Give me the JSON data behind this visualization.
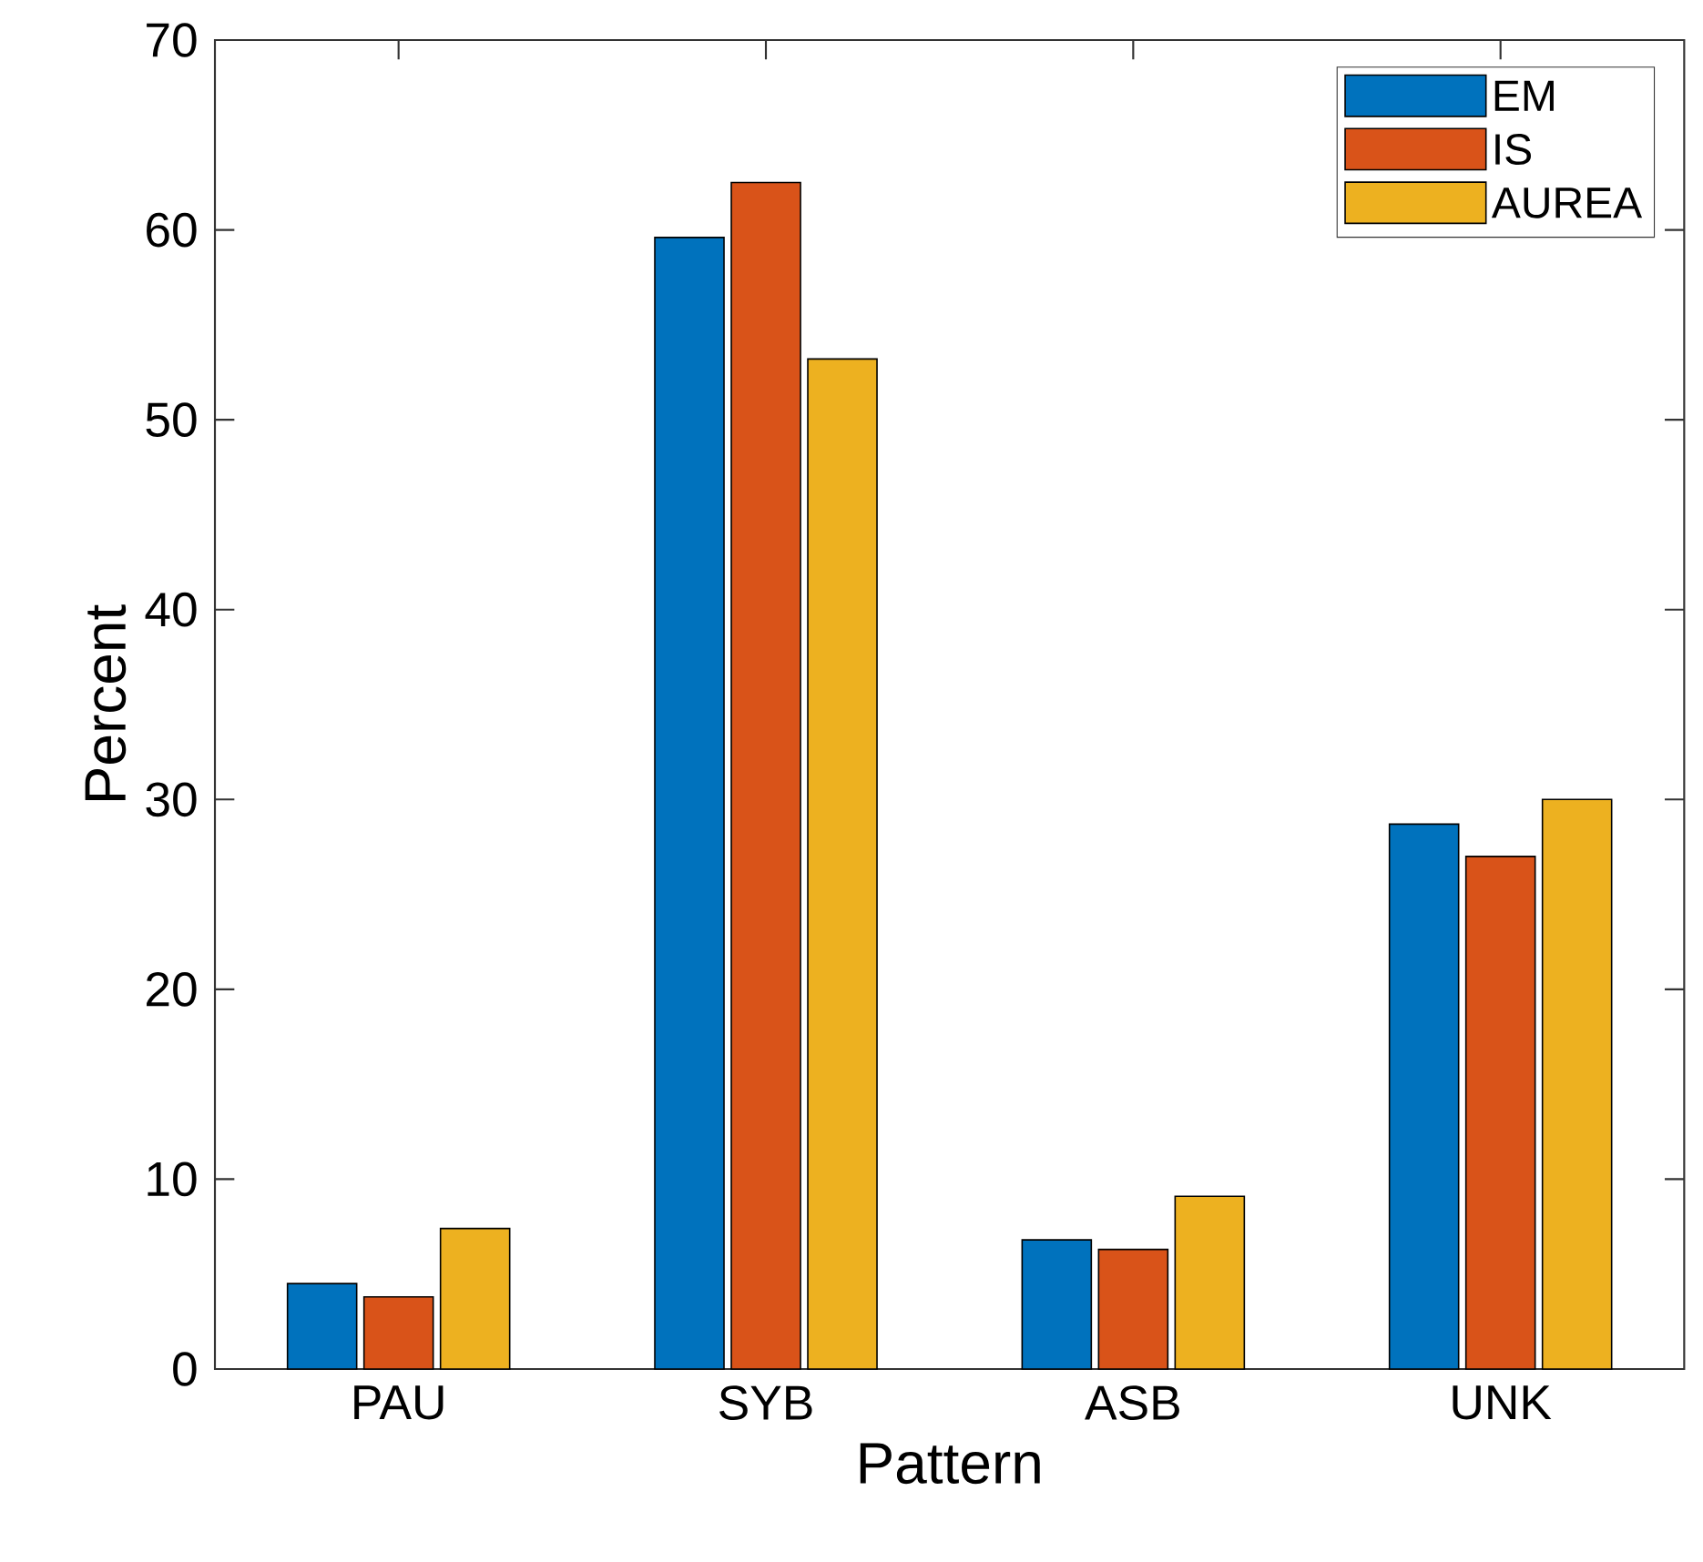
{
  "chart_data": {
    "type": "bar",
    "xlabel": "Pattern",
    "ylabel": "Percent",
    "categories": [
      "PAU",
      "SYB",
      "ASB",
      "UNK"
    ],
    "series": [
      {
        "name": "EM",
        "color": "#0072bd",
        "values": [
          4.5,
          59.6,
          6.8,
          28.7
        ]
      },
      {
        "name": "IS",
        "color": "#d95319",
        "values": [
          3.8,
          62.5,
          6.3,
          27.0
        ]
      },
      {
        "name": "AUREA",
        "color": "#edb120",
        "values": [
          7.4,
          53.2,
          9.1,
          30.0
        ]
      }
    ],
    "ylim": [
      0,
      70
    ],
    "yticks": [
      0,
      10,
      20,
      30,
      40,
      50,
      60,
      70
    ],
    "legend": "top right"
  }
}
